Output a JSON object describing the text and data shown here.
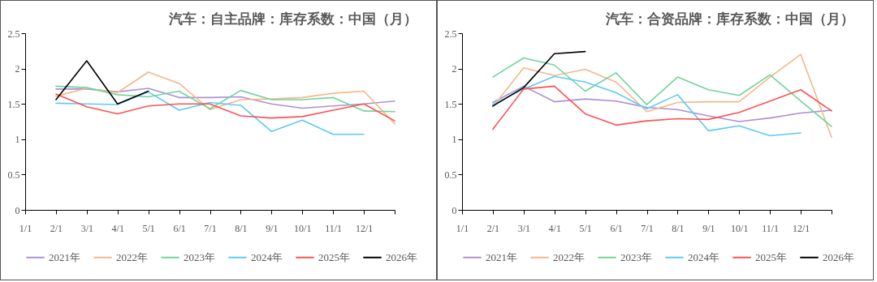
{
  "chart_data": [
    {
      "type": "line",
      "title": "汽车：自主品牌：库存系数：中国（月）",
      "categories": [
        "1/1",
        "2/1",
        "3/1",
        "4/1",
        "5/1",
        "6/1",
        "7/1",
        "8/1",
        "9/1",
        "10/1",
        "11/1",
        "12/1",
        null
      ],
      "ylim": [
        0,
        2.5
      ],
      "yticks": [
        0,
        0.5,
        1,
        1.5,
        2,
        2.5
      ],
      "grid": false,
      "legend": "bottom",
      "series": [
        {
          "name": "2021年",
          "color": "#b08fd2",
          "values": [
            null,
            1.71,
            1.71,
            1.67,
            1.72,
            1.59,
            1.59,
            1.6,
            1.5,
            1.44,
            1.47,
            1.5,
            1.54
          ]
        },
        {
          "name": "2022年",
          "color": "#f6b68a",
          "values": [
            null,
            1.61,
            1.72,
            1.66,
            1.95,
            1.79,
            1.42,
            1.56,
            1.57,
            1.59,
            1.65,
            1.68,
            1.22
          ]
        },
        {
          "name": "2023年",
          "color": "#72d39c",
          "values": [
            null,
            1.75,
            1.73,
            1.63,
            1.6,
            1.68,
            1.43,
            1.69,
            1.56,
            1.56,
            1.59,
            1.4,
            1.39
          ]
        },
        {
          "name": "2024年",
          "color": "#5ccaf5",
          "values": [
            null,
            1.51,
            1.5,
            1.49,
            1.67,
            1.41,
            1.52,
            1.48,
            1.11,
            1.27,
            1.07,
            1.07,
            null
          ]
        },
        {
          "name": "2025年",
          "color": "#ff5252",
          "values": [
            null,
            1.64,
            1.46,
            1.36,
            1.47,
            1.5,
            1.5,
            1.33,
            1.3,
            1.32,
            1.41,
            1.5,
            1.26
          ]
        },
        {
          "name": "2026年",
          "color": "#000000",
          "values": [
            null,
            1.56,
            2.11,
            1.5,
            1.68,
            null,
            null,
            null,
            null,
            null,
            null,
            null,
            null
          ]
        }
      ]
    },
    {
      "type": "line",
      "title": "汽车：合资品牌：库存系数：中国（月）",
      "categories": [
        "1/1",
        "2/1",
        "3/1",
        "4/1",
        "5/1",
        "6/1",
        "7/1",
        "8/1",
        "9/1",
        "10/1",
        "11/1",
        "12/1",
        null
      ],
      "ylim": [
        0,
        2.5
      ],
      "yticks": [
        0,
        0.5,
        1,
        1.5,
        2,
        2.5
      ],
      "grid": false,
      "legend": "bottom",
      "series": [
        {
          "name": "2021年",
          "color": "#b08fd2",
          "values": [
            null,
            1.52,
            1.75,
            1.53,
            1.57,
            1.54,
            1.45,
            1.42,
            1.33,
            1.25,
            1.3,
            1.37,
            1.41
          ]
        },
        {
          "name": "2022年",
          "color": "#f6b68a",
          "values": [
            null,
            1.46,
            2.01,
            1.9,
            1.99,
            1.81,
            1.39,
            1.52,
            1.53,
            1.53,
            1.88,
            2.2,
            1.03
          ]
        },
        {
          "name": "2023年",
          "color": "#72d39c",
          "values": [
            null,
            1.88,
            2.15,
            2.05,
            1.68,
            1.94,
            1.49,
            1.88,
            1.7,
            1.62,
            1.91,
            1.54,
            1.18
          ]
        },
        {
          "name": "2024年",
          "color": "#5ccaf5",
          "values": [
            null,
            1.49,
            1.71,
            1.89,
            1.81,
            1.66,
            1.43,
            1.63,
            1.12,
            1.19,
            1.05,
            1.09,
            null
          ]
        },
        {
          "name": "2025年",
          "color": "#ff5252",
          "values": [
            null,
            1.14,
            1.71,
            1.75,
            1.36,
            1.2,
            1.26,
            1.29,
            1.28,
            1.38,
            1.54,
            1.7,
            1.4
          ]
        },
        {
          "name": "2026年",
          "color": "#000000",
          "values": [
            null,
            1.47,
            1.73,
            2.21,
            2.24,
            null,
            null,
            null,
            null,
            null,
            null,
            null,
            null
          ]
        }
      ]
    }
  ]
}
